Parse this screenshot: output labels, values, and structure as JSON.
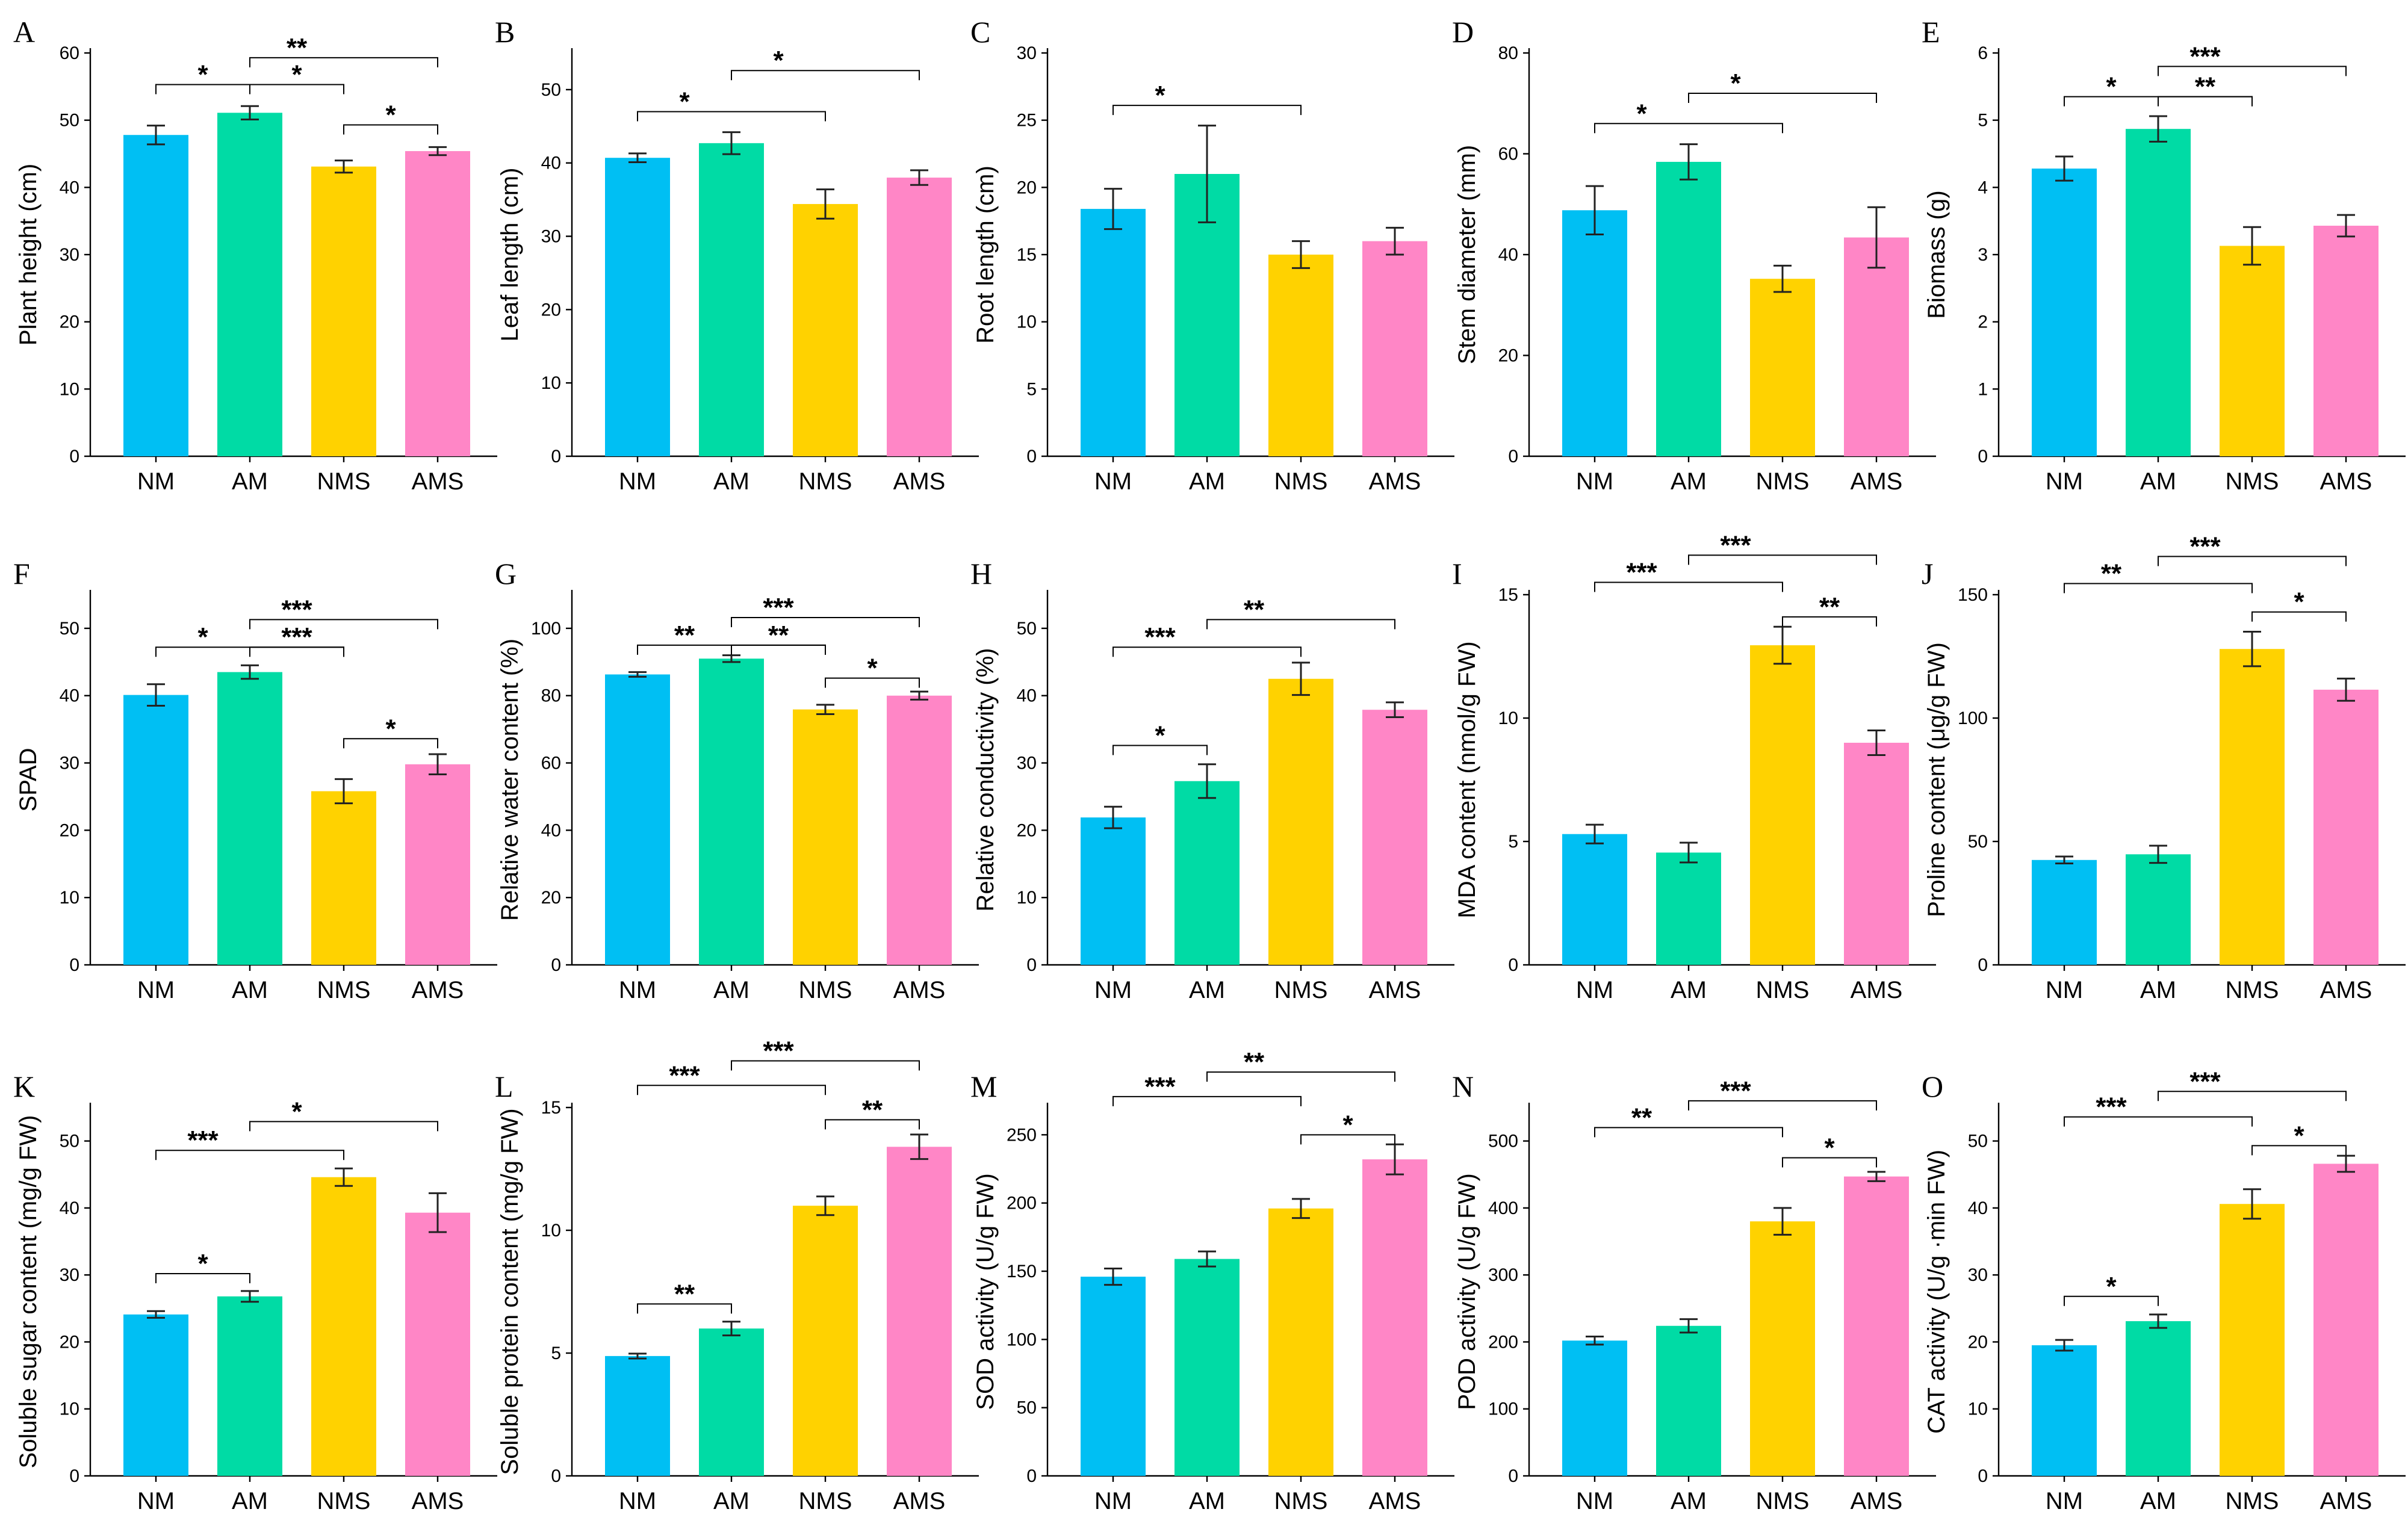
{
  "figure": {
    "colors": {
      "NM": "#00BFF3",
      "AM": "#00DBA5",
      "NMS": "#FFD200",
      "AMS": "#FF86C6"
    },
    "chart_data": [
      {
        "id": "A",
        "type": "bar",
        "ylabel": "Plant height (cm)",
        "categories": [
          "NM",
          "AM",
          "NMS",
          "AMS"
        ],
        "values": [
          47.8,
          51.1,
          43.1,
          45.4
        ],
        "errors": [
          1.4,
          1.0,
          0.9,
          0.6
        ],
        "ylim": [
          0,
          60
        ],
        "yticks": [
          "0",
          "10",
          "20",
          "30",
          "40",
          "50",
          "60"
        ],
        "sig": [
          {
            "from": 0,
            "to": 2,
            "label": "*",
            "level": 55.3
          },
          {
            "from": 1,
            "to": 3,
            "label": "**",
            "level": 59.3
          },
          {
            "from": 1,
            "to": 2,
            "label": "*",
            "level": 55.3
          },
          {
            "from": 2,
            "to": 3,
            "label": "*",
            "level": 49.3
          }
        ]
      },
      {
        "id": "B",
        "type": "bar",
        "ylabel": "Leaf length (cm)",
        "categories": [
          "NM",
          "AM",
          "NMS",
          "AMS"
        ],
        "values": [
          40.7,
          42.7,
          34.4,
          38.0
        ],
        "errors": [
          0.6,
          1.5,
          2.0,
          1.0
        ],
        "ylim": [
          0,
          55
        ],
        "yticks": [
          "0",
          "10",
          "20",
          "30",
          "40",
          "50"
        ],
        "sig": [
          {
            "from": 0,
            "to": 2,
            "label": "*",
            "level": 47.0
          },
          {
            "from": 1,
            "to": 3,
            "label": "*",
            "level": 52.6
          }
        ]
      },
      {
        "id": "C",
        "type": "bar",
        "ylabel": "Root length (cm)",
        "categories": [
          "NM",
          "AM",
          "NMS",
          "AMS"
        ],
        "values": [
          18.4,
          21.0,
          15.0,
          16.0
        ],
        "errors": [
          1.5,
          3.6,
          1.0,
          1.0
        ],
        "ylim": [
          0,
          30
        ],
        "yticks": [
          "0",
          "5",
          "10",
          "15",
          "20",
          "25",
          "30"
        ],
        "sig": [
          {
            "from": 0,
            "to": 2,
            "label": "*",
            "level": 26.1
          }
        ]
      },
      {
        "id": "D",
        "type": "bar",
        "ylabel": "Stem diameter (mm)",
        "categories": [
          "NM",
          "AM",
          "NMS",
          "AMS"
        ],
        "values": [
          48.8,
          58.4,
          35.2,
          43.4
        ],
        "errors": [
          4.8,
          3.5,
          2.6,
          6.0
        ],
        "ylim": [
          0,
          80
        ],
        "yticks": [
          "0",
          "20",
          "40",
          "60",
          "80"
        ],
        "sig": [
          {
            "from": 0,
            "to": 2,
            "label": "*",
            "level": 66.0
          },
          {
            "from": 1,
            "to": 3,
            "label": "*",
            "level": 72.0
          }
        ]
      },
      {
        "id": "E",
        "type": "bar",
        "ylabel": "Biomass (g)",
        "categories": [
          "NM",
          "AM",
          "NMS",
          "AMS"
        ],
        "values": [
          4.28,
          4.87,
          3.13,
          3.43
        ],
        "errors": [
          0.18,
          0.19,
          0.28,
          0.16
        ],
        "ylim": [
          0,
          6
        ],
        "yticks": [
          "0",
          "1",
          "2",
          "3",
          "4",
          "5",
          "6"
        ],
        "sig": [
          {
            "from": 0,
            "to": 2,
            "label": "*",
            "level": 5.35
          },
          {
            "from": 1,
            "to": 3,
            "label": "***",
            "level": 5.8
          },
          {
            "from": 1,
            "to": 2,
            "label": "**",
            "level": 5.35
          }
        ]
      },
      {
        "id": "F",
        "type": "bar",
        "ylabel": "SPAD",
        "categories": [
          "NM",
          "AM",
          "NMS",
          "AMS"
        ],
        "values": [
          40.1,
          43.5,
          25.8,
          29.8
        ],
        "errors": [
          1.6,
          1.0,
          1.8,
          1.5
        ],
        "ylim": [
          0,
          55
        ],
        "yticks": [
          "0",
          "10",
          "20",
          "30",
          "40",
          "50"
        ],
        "sig": [
          {
            "from": 0,
            "to": 2,
            "label": "*",
            "level": 47.2
          },
          {
            "from": 1,
            "to": 3,
            "label": "***",
            "level": 51.3
          },
          {
            "from": 1,
            "to": 2,
            "label": "***",
            "level": 47.2
          },
          {
            "from": 2,
            "to": 3,
            "label": "*",
            "level": 33.6
          }
        ]
      },
      {
        "id": "G",
        "type": "bar",
        "ylabel": "Relative water content (%)",
        "categories": [
          "NM",
          "AM",
          "NMS",
          "AMS"
        ],
        "values": [
          86.3,
          91.0,
          75.9,
          80.0
        ],
        "errors": [
          0.7,
          1.0,
          1.4,
          1.2
        ],
        "ylim": [
          0,
          110
        ],
        "yticks": [
          "0",
          "20",
          "40",
          "60",
          "80",
          "100"
        ],
        "sig": [
          {
            "from": 0,
            "to": 2,
            "label": "**",
            "level": 95.0
          },
          {
            "from": 1,
            "to": 3,
            "label": "***",
            "level": 103.2
          },
          {
            "from": 1,
            "to": 2,
            "label": "**",
            "level": 95.0
          },
          {
            "from": 2,
            "to": 3,
            "label": "*",
            "level": 85.2
          }
        ]
      },
      {
        "id": "H",
        "type": "bar",
        "ylabel": "Relative conductivity (%)",
        "categories": [
          "NM",
          "AM",
          "NMS",
          "AMS"
        ],
        "values": [
          21.9,
          27.3,
          42.5,
          37.9
        ],
        "errors": [
          1.6,
          2.5,
          2.4,
          1.1
        ],
        "ylim": [
          0,
          55
        ],
        "yticks": [
          "0",
          "10",
          "20",
          "30",
          "40",
          "50"
        ],
        "sig": [
          {
            "from": 0,
            "to": 1,
            "label": "*",
            "level": 32.6
          },
          {
            "from": 0,
            "to": 2,
            "label": "***",
            "level": 47.2
          },
          {
            "from": 1,
            "to": 3,
            "label": "**",
            "level": 51.3
          }
        ]
      },
      {
        "id": "I",
        "type": "bar",
        "ylabel": "MDA content (nmol/g FW)",
        "categories": [
          "NM",
          "AM",
          "NMS",
          "AMS"
        ],
        "values": [
          5.3,
          4.55,
          12.95,
          9.0
        ],
        "errors": [
          0.38,
          0.4,
          0.75,
          0.5
        ],
        "ylim": [
          0,
          15
        ],
        "yticks": [
          "0",
          "5",
          "10",
          "15"
        ],
        "sig": [
          {
            "from": 0,
            "to": 2,
            "label": "***",
            "level": 15.5
          },
          {
            "from": 1,
            "to": 3,
            "label": "***",
            "level": 16.6
          },
          {
            "from": 2,
            "to": 3,
            "label": "**",
            "level": 14.1
          }
        ]
      },
      {
        "id": "J",
        "type": "bar",
        "ylabel": "Proline content (μg/g FW)",
        "categories": [
          "NM",
          "AM",
          "NMS",
          "AMS"
        ],
        "values": [
          42.5,
          44.8,
          128.0,
          111.5
        ],
        "errors": [
          1.4,
          3.5,
          7.0,
          4.5
        ],
        "ylim": [
          0,
          150
        ],
        "yticks": [
          "0",
          "50",
          "100",
          "150"
        ],
        "sig": [
          {
            "from": 0,
            "to": 2,
            "label": "**",
            "level": 154.5
          },
          {
            "from": 1,
            "to": 3,
            "label": "***",
            "level": 165.5
          },
          {
            "from": 2,
            "to": 3,
            "label": "*",
            "level": 143.0
          }
        ]
      },
      {
        "id": "K",
        "type": "bar",
        "ylabel": "Soluble sugar content (mg/g FW)",
        "categories": [
          "NM",
          "AM",
          "NMS",
          "AMS"
        ],
        "values": [
          24.1,
          26.8,
          44.6,
          39.3
        ],
        "errors": [
          0.5,
          0.8,
          1.3,
          2.9
        ],
        "ylim": [
          0,
          55
        ],
        "yticks": [
          "0",
          "10",
          "20",
          "30",
          "40",
          "50"
        ],
        "sig": [
          {
            "from": 0,
            "to": 1,
            "label": "*",
            "level": 30.2
          },
          {
            "from": 0,
            "to": 2,
            "label": "***",
            "level": 48.6
          },
          {
            "from": 1,
            "to": 3,
            "label": "*",
            "level": 52.9
          }
        ]
      },
      {
        "id": "L",
        "type": "bar",
        "ylabel": "Soluble protein content (mg/g FW)",
        "categories": [
          "NM",
          "AM",
          "NMS",
          "AMS"
        ],
        "values": [
          4.88,
          6.0,
          11.0,
          13.4
        ],
        "errors": [
          0.1,
          0.28,
          0.38,
          0.5
        ],
        "ylim": [
          0,
          15
        ],
        "yticks": [
          "0",
          "5",
          "10",
          "15"
        ],
        "sig": [
          {
            "from": 0,
            "to": 1,
            "label": "**",
            "level": 7.0
          },
          {
            "from": 0,
            "to": 2,
            "label": "***",
            "level": 15.9
          },
          {
            "from": 1,
            "to": 3,
            "label": "***",
            "level": 16.9
          },
          {
            "from": 2,
            "to": 3,
            "label": "**",
            "level": 14.5
          }
        ]
      },
      {
        "id": "M",
        "type": "bar",
        "ylabel": "SOD activity (U/g FW)",
        "categories": [
          "NM",
          "AM",
          "NMS",
          "AMS"
        ],
        "values": [
          146.0,
          159.0,
          196.0,
          232.0
        ],
        "errors": [
          6.0,
          5.5,
          7.0,
          11.0
        ],
        "ylim": [
          0,
          270
        ],
        "yticks": [
          "0",
          "50",
          "100",
          "150",
          "200",
          "250"
        ],
        "sig": [
          {
            "from": 0,
            "to": 2,
            "label": "***",
            "level": 278.0
          },
          {
            "from": 1,
            "to": 3,
            "label": "**",
            "level": 296.0
          },
          {
            "from": 2,
            "to": 3,
            "label": "*",
            "level": 250.0
          }
        ]
      },
      {
        "id": "N",
        "type": "bar",
        "ylabel": "POD activity (U/g FW)",
        "categories": [
          "NM",
          "AM",
          "NMS",
          "AMS"
        ],
        "values": [
          202.0,
          224.0,
          380.0,
          447.0
        ],
        "errors": [
          6.0,
          10.0,
          20.0,
          7.0
        ],
        "ylim": [
          0,
          550
        ],
        "yticks": [
          "0",
          "100",
          "200",
          "300",
          "400",
          "500"
        ],
        "sig": [
          {
            "from": 0,
            "to": 2,
            "label": "**",
            "level": 520.0
          },
          {
            "from": 1,
            "to": 3,
            "label": "***",
            "level": 560.0
          },
          {
            "from": 2,
            "to": 3,
            "label": "*",
            "level": 475.0
          }
        ]
      },
      {
        "id": "O",
        "type": "bar",
        "ylabel": "CAT activity (U/g ·min FW)",
        "categories": [
          "NM",
          "AM",
          "NMS",
          "AMS"
        ],
        "values": [
          19.5,
          23.1,
          40.6,
          46.6
        ],
        "errors": [
          0.8,
          1.0,
          2.2,
          1.2
        ],
        "ylim": [
          0,
          55
        ],
        "yticks": [
          "0",
          "10",
          "20",
          "30",
          "40",
          "50"
        ],
        "sig": [
          {
            "from": 0,
            "to": 1,
            "label": "*",
            "level": 26.8
          },
          {
            "from": 0,
            "to": 2,
            "label": "***",
            "level": 53.6
          },
          {
            "from": 1,
            "to": 3,
            "label": "***",
            "level": 57.4
          },
          {
            "from": 2,
            "to": 3,
            "label": "*",
            "level": 49.3
          }
        ]
      }
    ]
  }
}
